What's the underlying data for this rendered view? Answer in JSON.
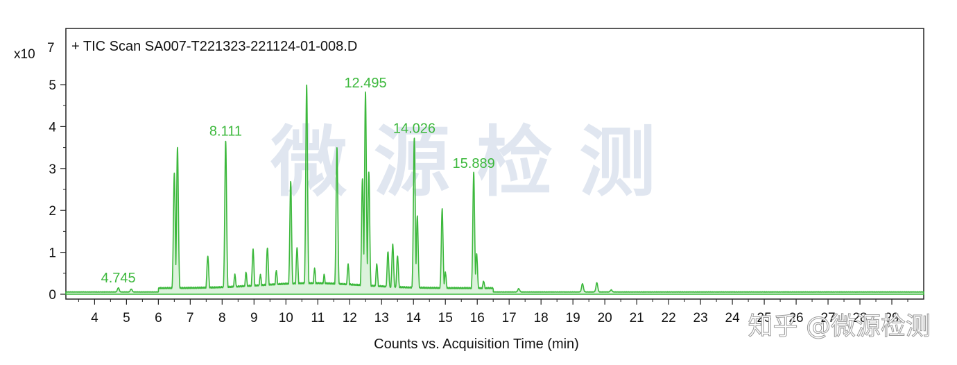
{
  "watermark": {
    "text": "微 源 检 测",
    "credit": "知乎 @微源检测"
  },
  "chart_data": {
    "type": "line",
    "title": "+ TIC Scan SA007-T221323-221124-01-008.D",
    "xlabel": "Counts vs. Acquisition Time (min)",
    "ylabel": "",
    "y_exponent_label": "x10",
    "y_exponent_value": "7",
    "xlim": [
      3.1,
      30.0
    ],
    "ylim": [
      0,
      5.5
    ],
    "x_ticks": [
      4,
      5,
      6,
      7,
      8,
      9,
      10,
      11,
      12,
      13,
      14,
      15,
      16,
      17,
      18,
      19,
      20,
      21,
      22,
      23,
      24,
      25,
      26,
      27,
      28,
      29
    ],
    "y_ticks": [
      0,
      1,
      2,
      3,
      4,
      5
    ],
    "grid": false,
    "line_color": "#3cb83c",
    "baseline": 0.05,
    "peaks": [
      {
        "x": 4.745,
        "y": 0.15
      },
      {
        "x": 5.15,
        "y": 0.12
      },
      {
        "x": 6.5,
        "y": 2.88
      },
      {
        "x": 6.6,
        "y": 3.5
      },
      {
        "x": 7.55,
        "y": 0.9
      },
      {
        "x": 8.111,
        "y": 3.65
      },
      {
        "x": 8.4,
        "y": 0.45
      },
      {
        "x": 8.75,
        "y": 0.5
      },
      {
        "x": 8.97,
        "y": 1.05
      },
      {
        "x": 9.2,
        "y": 0.45
      },
      {
        "x": 9.42,
        "y": 1.1
      },
      {
        "x": 9.7,
        "y": 0.55
      },
      {
        "x": 10.15,
        "y": 2.68
      },
      {
        "x": 10.35,
        "y": 1.1
      },
      {
        "x": 10.65,
        "y": 5.0
      },
      {
        "x": 10.9,
        "y": 0.6
      },
      {
        "x": 11.2,
        "y": 0.45
      },
      {
        "x": 11.6,
        "y": 3.48
      },
      {
        "x": 11.95,
        "y": 0.7
      },
      {
        "x": 12.4,
        "y": 2.75
      },
      {
        "x": 12.495,
        "y": 4.8
      },
      {
        "x": 12.6,
        "y": 2.9
      },
      {
        "x": 12.85,
        "y": 0.7
      },
      {
        "x": 13.2,
        "y": 1.0
      },
      {
        "x": 13.35,
        "y": 1.18
      },
      {
        "x": 13.5,
        "y": 0.9
      },
      {
        "x": 14.026,
        "y": 3.72
      },
      {
        "x": 14.12,
        "y": 1.85
      },
      {
        "x": 14.9,
        "y": 2.02
      },
      {
        "x": 15.0,
        "y": 0.5
      },
      {
        "x": 15.889,
        "y": 2.88
      },
      {
        "x": 15.98,
        "y": 0.95
      },
      {
        "x": 16.2,
        "y": 0.3
      },
      {
        "x": 17.3,
        "y": 0.13
      },
      {
        "x": 19.3,
        "y": 0.25
      },
      {
        "x": 19.75,
        "y": 0.27
      },
      {
        "x": 20.2,
        "y": 0.1
      }
    ],
    "annotations": [
      {
        "text": "4.745",
        "x": 4.745,
        "y": 0.15
      },
      {
        "text": "8.111",
        "x": 8.111,
        "y": 3.65
      },
      {
        "text": "12.495",
        "x": 12.495,
        "y": 4.8
      },
      {
        "text": "14.026",
        "x": 14.026,
        "y": 3.72
      },
      {
        "text": "15.889",
        "x": 15.889,
        "y": 2.88
      }
    ]
  }
}
